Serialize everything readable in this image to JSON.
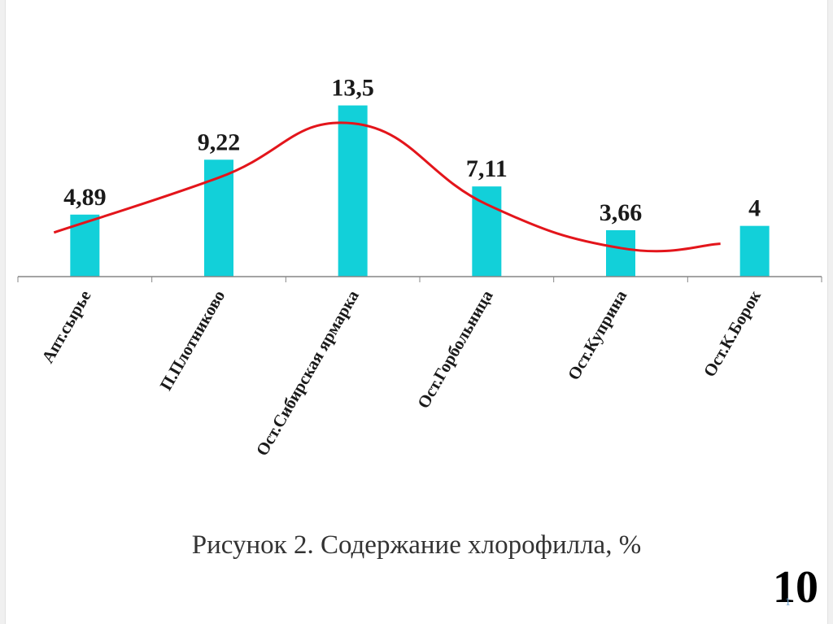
{
  "chart_data": {
    "type": "bar",
    "categories": [
      "Апт.сырье",
      "П.Плотниково",
      "Ост.Сибирская ярмарка",
      "Ост.Горбольница",
      "Ост.Куприна",
      "Ост.К.Борок"
    ],
    "values": [
      4.89,
      9.22,
      13.5,
      7.11,
      3.66,
      4
    ],
    "data_labels": [
      "4,89",
      "9,22",
      "13,5",
      "7,11",
      "3,66",
      "4"
    ],
    "ylim": [
      0,
      14.5
    ],
    "grid": false,
    "legend": "none",
    "trendline": "smoothed",
    "colors": {
      "bar": "#12d0d9",
      "trendline": "#e3151b",
      "axis": "#868686"
    }
  },
  "caption": "Рисунок 2. Содержание хлорофилла, %",
  "page_number": "10",
  "page_number_small": "1"
}
